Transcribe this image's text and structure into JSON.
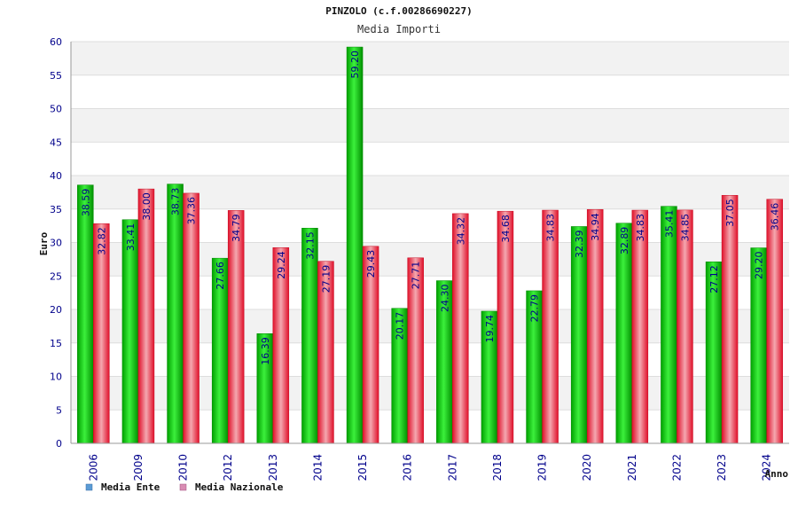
{
  "chart_data": {
    "type": "bar",
    "title": "PINZOLO (c.f.00286690227)",
    "subtitle": "Media Importi",
    "xlabel": "Anno",
    "ylabel": "Euro",
    "ylim": [
      0,
      60
    ],
    "yticks": [
      0,
      5,
      10,
      15,
      20,
      25,
      30,
      35,
      40,
      45,
      50,
      55,
      60
    ],
    "categories": [
      "2006",
      "2009",
      "2010",
      "2012",
      "2013",
      "2014",
      "2015",
      "2016",
      "2017",
      "2018",
      "2019",
      "2020",
      "2021",
      "2022",
      "2023",
      "2024"
    ],
    "series": [
      {
        "name": "Media Ente",
        "color": "#00b400",
        "values": [
          38.59,
          33.41,
          38.73,
          27.66,
          16.39,
          32.15,
          59.2,
          20.17,
          24.3,
          19.74,
          22.79,
          32.39,
          32.89,
          35.41,
          27.12,
          29.2
        ],
        "labels": [
          "38.59",
          "33.41",
          "38.73",
          "27.66",
          "16.39",
          "32.15",
          "59.20",
          "20.17",
          "24.30",
          "19.74",
          "22.79",
          "32.39",
          "32.89",
          "35.41",
          "27.12",
          "29.20"
        ]
      },
      {
        "name": "Media Nazionale",
        "color": "#e8283c",
        "values": [
          32.82,
          38.0,
          37.36,
          34.79,
          29.24,
          27.19,
          29.43,
          27.71,
          34.32,
          34.68,
          34.83,
          34.94,
          34.83,
          34.85,
          37.05,
          36.46
        ],
        "labels": [
          "32.82",
          "38.00",
          "37.36",
          "34.79",
          "29.24",
          "27.19",
          "29.43",
          "27.71",
          "34.32",
          "34.68",
          "34.83",
          "34.94",
          "34.83",
          "34.85",
          "37.05",
          "36.46"
        ]
      }
    ],
    "legend": {
      "placement": "bottom-left",
      "items": [
        {
          "label": "Media Ente",
          "color": "#5b9bd5"
        },
        {
          "label": "Media Nazionale",
          "color": "#d98cb3"
        }
      ]
    },
    "grid": true,
    "band_colors": [
      "#f2f2f2",
      "#ffffff"
    ]
  }
}
